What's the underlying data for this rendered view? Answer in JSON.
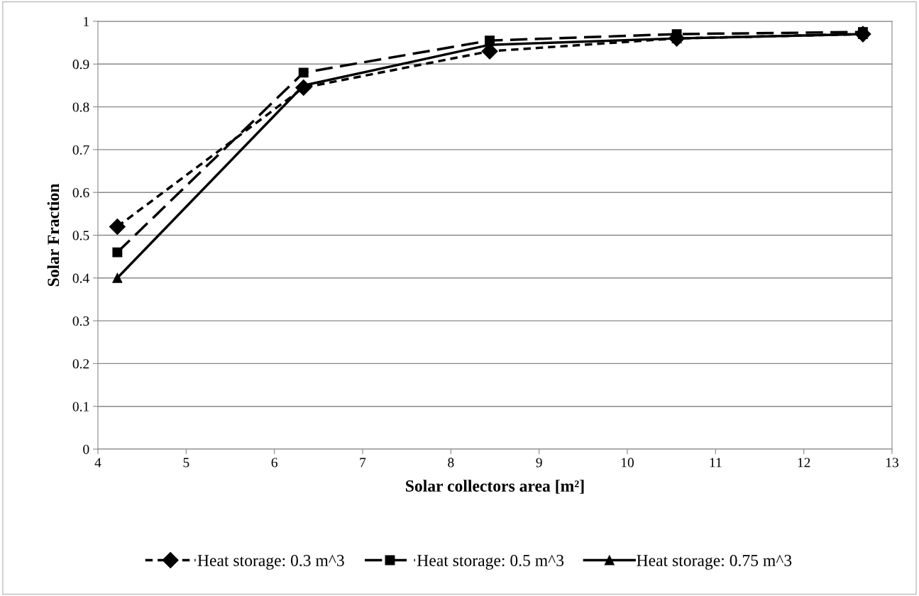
{
  "chart_data": {
    "type": "line",
    "xlabel": "Solar collectors area [m²]",
    "ylabel": "Solar Fraction",
    "x": [
      4.22,
      6.33,
      8.44,
      10.56,
      12.67
    ],
    "series": [
      {
        "name": "Heat storage: 0.3 m^3",
        "color": "#000000",
        "values": [
          0.52,
          0.845,
          0.93,
          0.96,
          0.97
        ],
        "marker": "diamond",
        "line_style": "dotted"
      },
      {
        "name": "Heat storage: 0.5 m^3",
        "color": "#000000",
        "values": [
          0.46,
          0.88,
          0.955,
          0.97,
          0.975
        ],
        "marker": "square",
        "line_style": "dashed"
      },
      {
        "name": "Heat storage: 0.75 m^3",
        "color": "#000000",
        "values": [
          0.4,
          0.85,
          0.945,
          0.96,
          0.97
        ],
        "marker": "triangle",
        "line_style": "solid"
      }
    ],
    "xlim": [
      4,
      13
    ],
    "xticks": [
      4,
      5,
      6,
      7,
      8,
      9,
      10,
      11,
      12,
      13
    ],
    "ylim": [
      0,
      1
    ],
    "yticks": [
      0,
      0.1,
      0.2,
      0.3,
      0.4,
      0.5,
      0.6,
      0.7,
      0.8,
      0.9,
      1
    ],
    "grid": "y",
    "legend": "bottom"
  }
}
